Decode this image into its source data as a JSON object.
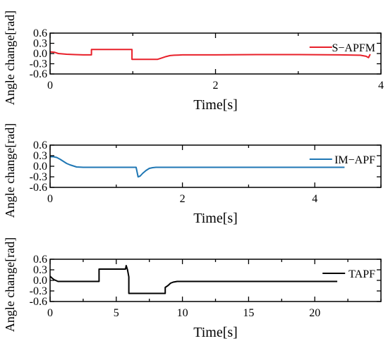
{
  "chart_data": [
    {
      "type": "line",
      "xlabel": "Time[s]",
      "ylabel": "Angle change[rad]",
      "xlim": [
        0,
        4
      ],
      "ylim": [
        -0.6,
        0.6
      ],
      "xticks": [
        0,
        2,
        4
      ],
      "yticks": [
        0.6,
        0.3,
        0.0,
        -0.3,
        -0.6
      ],
      "ytick_labels": [
        "0.6",
        "0.3",
        "0.0",
        "-0.3",
        "-0.6"
      ],
      "grid": false,
      "legend": "top-right",
      "series": [
        {
          "name": "S−APFM",
          "color": "#e8202a",
          "x": [
            0,
            0.05,
            0.1,
            0.2,
            0.3,
            0.4,
            0.5,
            0.5,
            0.55,
            0.7,
            0.9,
            0.99,
            0.99,
            1.1,
            1.3,
            1.35,
            1.4,
            1.45,
            1.5,
            1.6,
            1.8,
            2.0,
            2.5,
            3.0,
            3.5,
            3.75,
            3.82,
            3.85,
            3.87
          ],
          "y": [
            0.05,
            0.04,
            0.0,
            -0.02,
            -0.03,
            -0.04,
            -0.04,
            0.12,
            0.12,
            0.12,
            0.12,
            0.12,
            -0.17,
            -0.17,
            -0.17,
            -0.13,
            -0.09,
            -0.06,
            -0.05,
            -0.04,
            -0.04,
            -0.04,
            -0.03,
            -0.03,
            -0.04,
            -0.05,
            -0.08,
            -0.12,
            -0.02
          ]
        }
      ]
    },
    {
      "type": "line",
      "xlabel": "Time[s]",
      "ylabel": "Angle change[rad]",
      "xlim": [
        0,
        5
      ],
      "ylim": [
        -0.6,
        0.6
      ],
      "xticks": [
        0,
        2,
        4
      ],
      "yticks": [
        0.6,
        0.3,
        0.0,
        -0.3,
        -0.6
      ],
      "ytick_labels": [
        "0.6",
        "0.3",
        "0.0",
        "-0.3",
        "-0.6"
      ],
      "grid": false,
      "legend": "top-right",
      "series": [
        {
          "name": "IM−APF",
          "color": "#1f77b4",
          "x": [
            0,
            0.05,
            0.1,
            0.15,
            0.2,
            0.25,
            0.3,
            0.35,
            0.4,
            0.5,
            0.7,
            1.0,
            1.3,
            1.33,
            1.36,
            1.4,
            1.45,
            1.5,
            1.55,
            1.6,
            1.8,
            2.0,
            2.5,
            3.0,
            3.5,
            4.0,
            4.45
          ],
          "y": [
            0.27,
            0.27,
            0.25,
            0.2,
            0.14,
            0.08,
            0.04,
            0.01,
            -0.02,
            -0.03,
            -0.03,
            -0.03,
            -0.03,
            -0.3,
            -0.28,
            -0.2,
            -0.12,
            -0.06,
            -0.04,
            -0.03,
            -0.03,
            -0.03,
            -0.03,
            -0.03,
            -0.03,
            -0.03,
            -0.03
          ]
        }
      ]
    },
    {
      "type": "line",
      "xlabel": "Time[s]",
      "ylabel": "Angle change[rad]",
      "xlim": [
        0,
        25
      ],
      "ylim": [
        -0.6,
        0.6
      ],
      "xticks": [
        0,
        5,
        10,
        15,
        20
      ],
      "yticks": [
        0.6,
        0.3,
        0.0,
        -0.3,
        -0.6
      ],
      "ytick_labels": [
        "0.6",
        "0.3",
        "0.0",
        "-0.3",
        "-0.6"
      ],
      "grid": false,
      "legend": "top-right",
      "series": [
        {
          "name": "TAPF",
          "color": "#000000",
          "x": [
            0,
            0.1,
            0.3,
            0.6,
            1.0,
            2.0,
            3.7,
            3.7,
            5.5,
            5.7,
            5.75,
            5.85,
            5.95,
            5.95,
            8.0,
            8.7,
            8.7,
            8.9,
            9.1,
            9.3,
            9.6,
            10.0,
            11.0,
            13.0,
            15.0,
            18.0,
            20.0,
            21.7
          ],
          "y": [
            0.12,
            0.08,
            0.02,
            -0.03,
            -0.03,
            -0.03,
            -0.03,
            0.32,
            0.32,
            0.32,
            0.42,
            0.3,
            0.1,
            -0.37,
            -0.37,
            -0.37,
            -0.2,
            -0.15,
            -0.08,
            -0.05,
            -0.03,
            -0.03,
            -0.03,
            -0.03,
            -0.03,
            -0.03,
            -0.03,
            -0.03
          ]
        }
      ]
    }
  ]
}
